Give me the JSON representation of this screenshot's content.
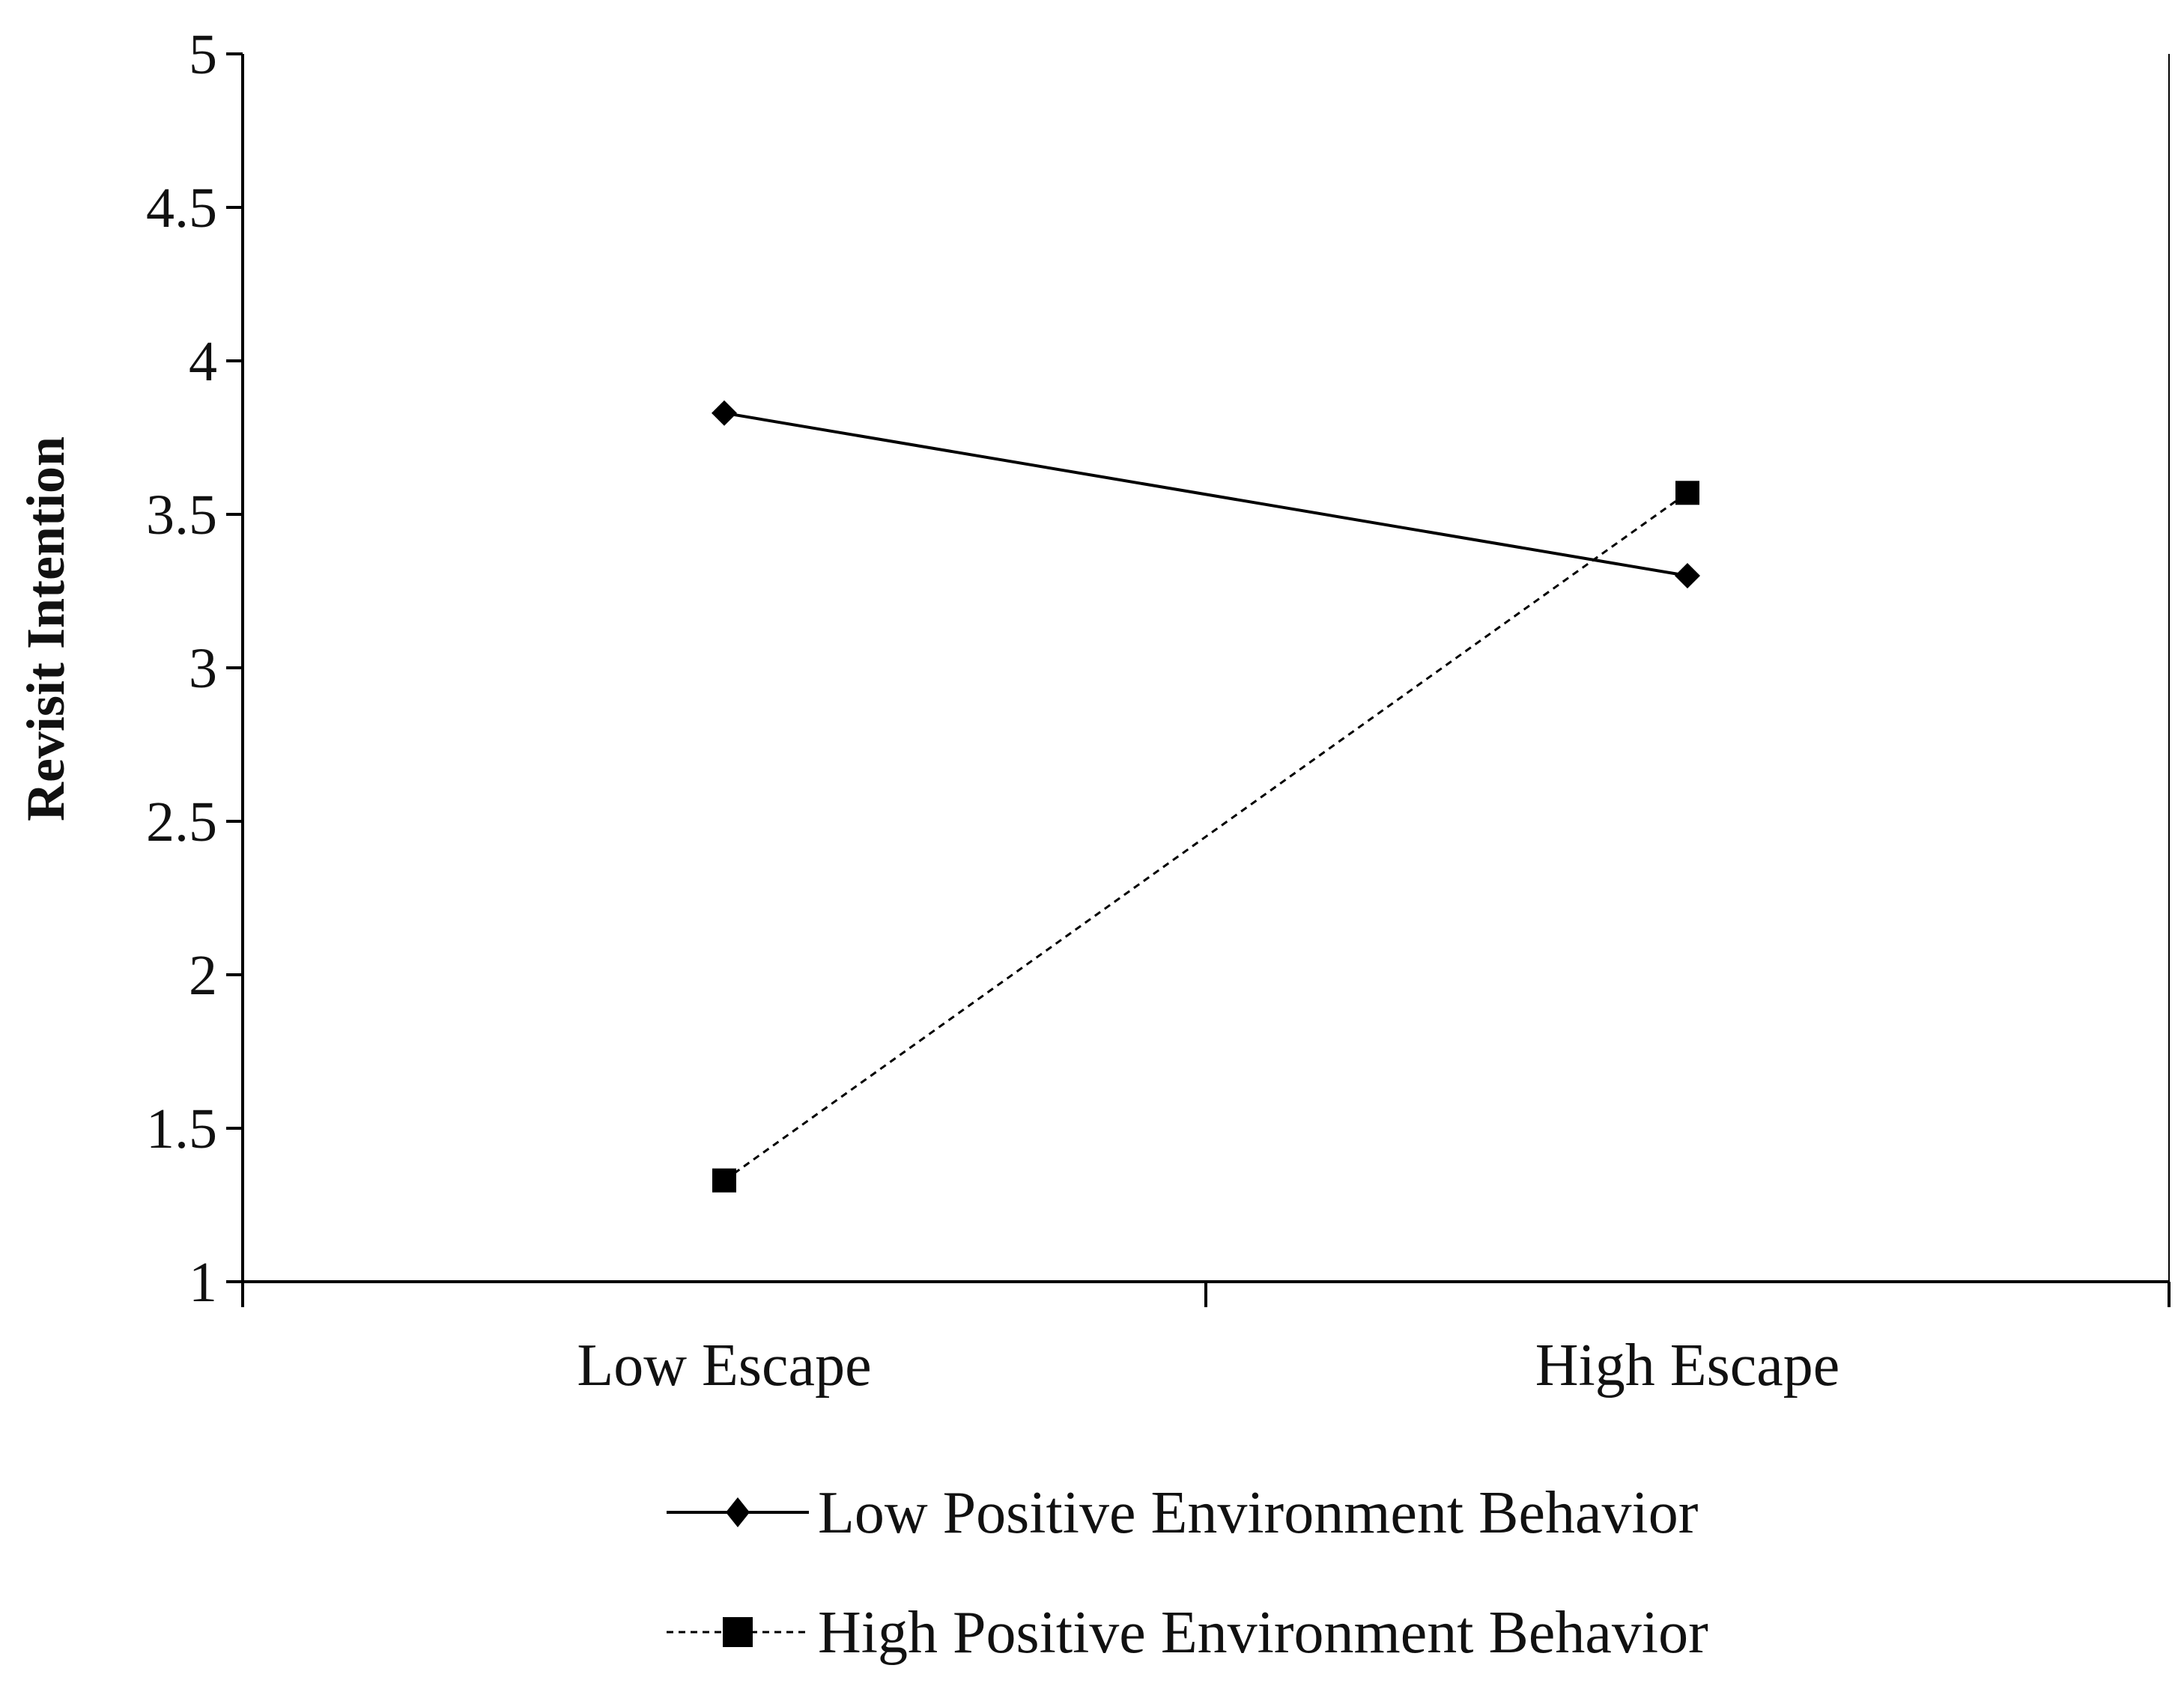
{
  "chart_data": {
    "type": "line",
    "title": "",
    "xlabel": "",
    "ylabel": "Revisit Intention",
    "categories": [
      "Low Escape",
      "High Escape"
    ],
    "ylim": [
      1,
      5
    ],
    "yticks": [
      "1",
      "1.5",
      "2",
      "2.5",
      "3",
      "3.5",
      "4",
      "4.5",
      "5"
    ],
    "grid": false,
    "legend_position": "bottom",
    "series": [
      {
        "name": "Low Positive Environment Behavior",
        "values": [
          3.83,
          3.3
        ],
        "marker": "diamond",
        "line_style": "solid",
        "color": "#000000"
      },
      {
        "name": "High Positive Environment Behavior",
        "values": [
          1.33,
          3.57
        ],
        "marker": "square",
        "line_style": "dashed",
        "color": "#000000"
      }
    ]
  }
}
